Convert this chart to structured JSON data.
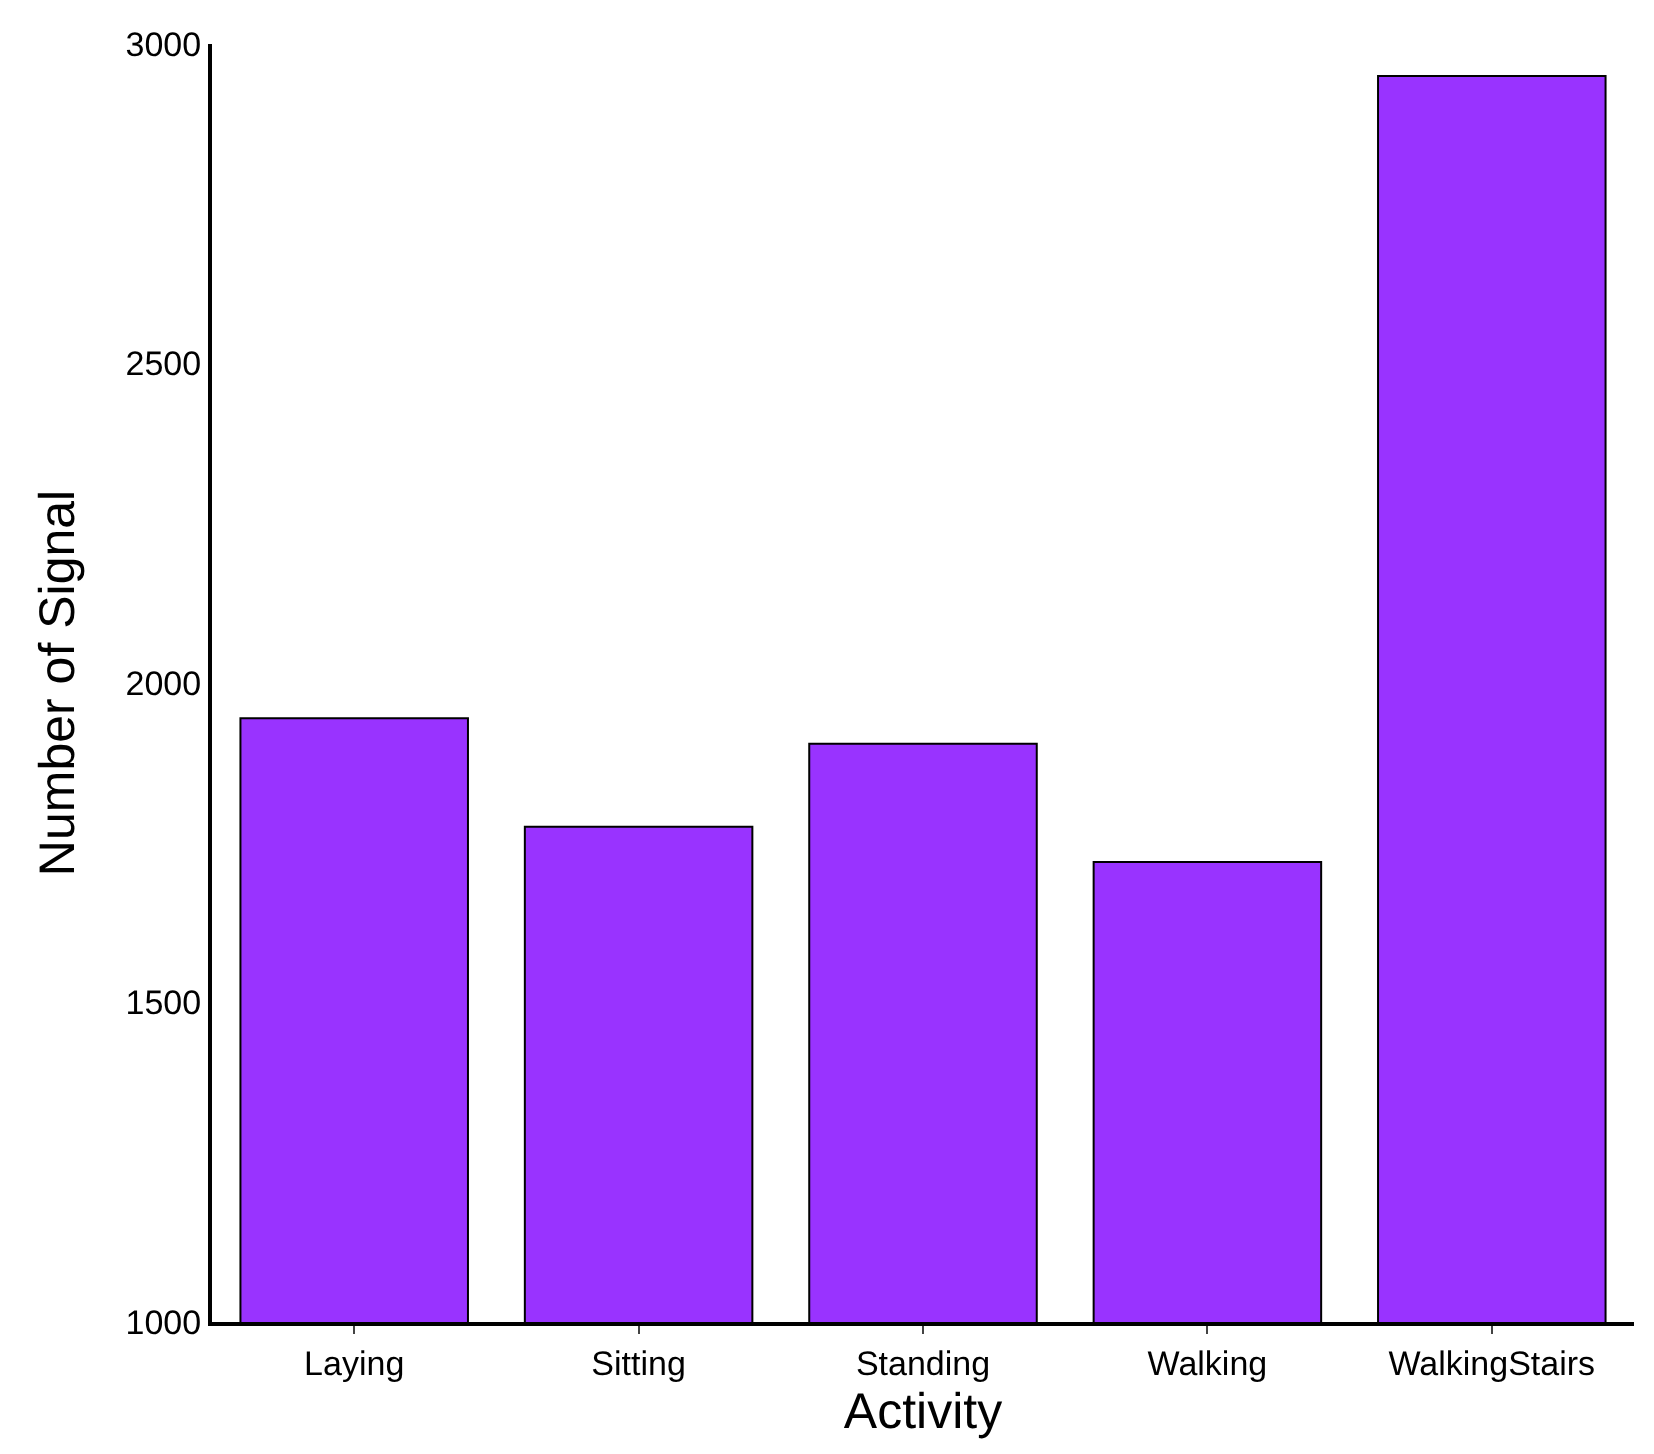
{
  "chart_data": {
    "type": "bar",
    "xlabel": "Activity",
    "ylabel": "Number of Signal",
    "categories": [
      "Laying",
      "Sitting",
      "Standing",
      "Walking",
      "WalkingStairs"
    ],
    "values": [
      1945,
      1775,
      1905,
      1720,
      2950
    ],
    "color": "#9933ff",
    "ylim": [
      1000,
      3000
    ],
    "yticks": [
      1000,
      1500,
      2000,
      2500,
      3000
    ],
    "grid": false
  }
}
